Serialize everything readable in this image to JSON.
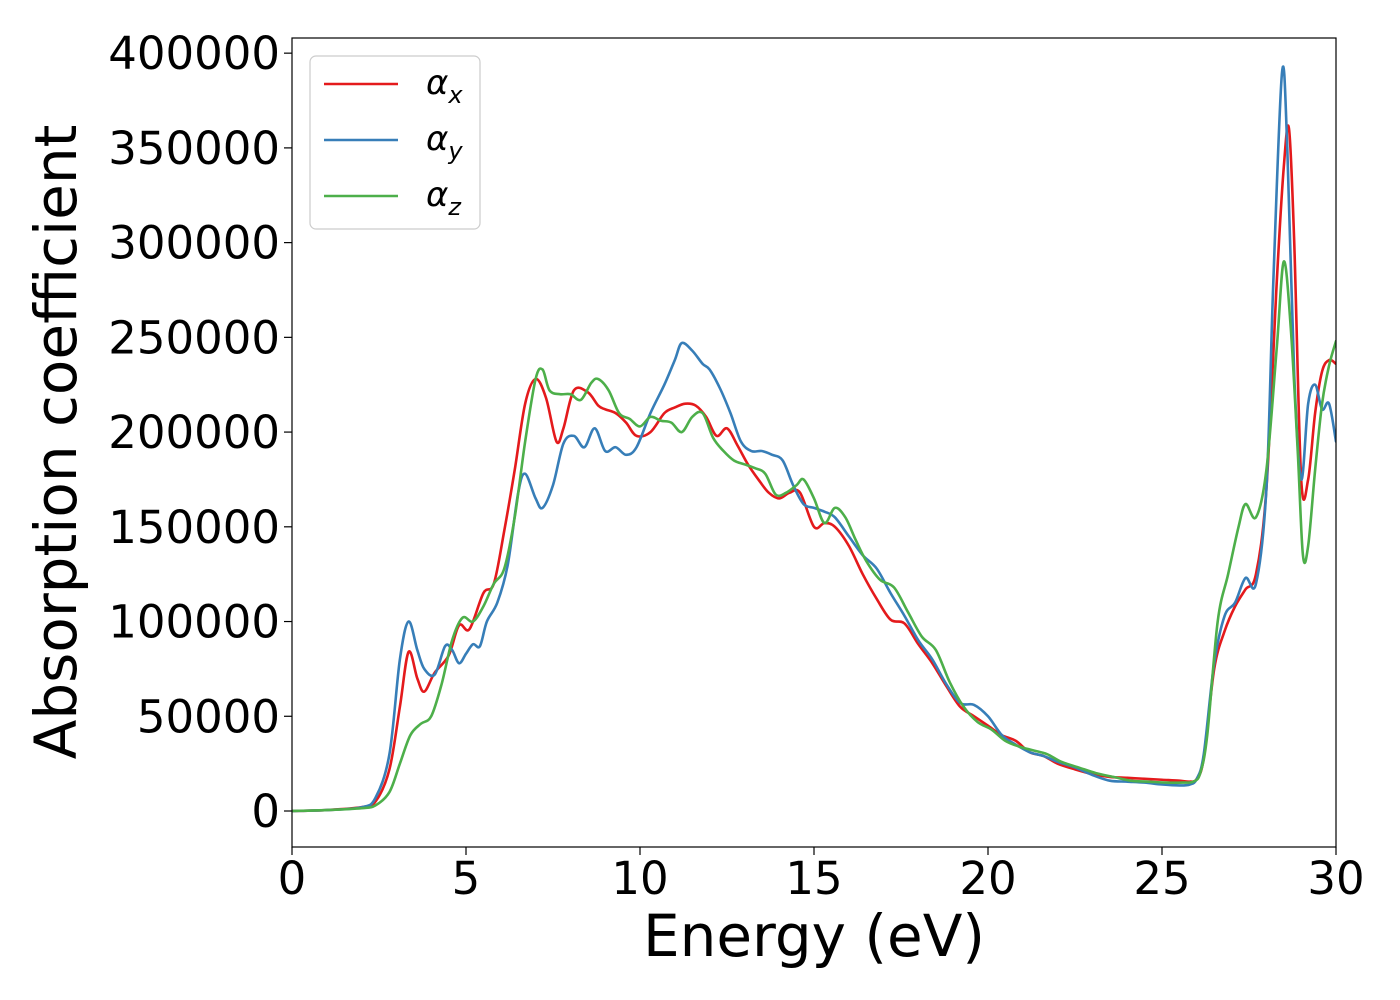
{
  "chart_data": {
    "type": "line",
    "xlabel": "Energy (eV)",
    "ylabel": "Absorption coefficient",
    "xlim": [
      0,
      30
    ],
    "ylim": [
      -19000,
      408000
    ],
    "xticks": [
      0,
      5,
      10,
      15,
      20,
      25,
      30
    ],
    "xtick_labels": [
      "0",
      "5",
      "10",
      "15",
      "20",
      "25",
      "30"
    ],
    "yticks": [
      0,
      50000,
      100000,
      150000,
      200000,
      250000,
      300000,
      350000,
      400000
    ],
    "ytick_labels": [
      "0",
      "50000",
      "100000",
      "150000",
      "200000",
      "250000",
      "300000",
      "350000",
      "400000"
    ],
    "grid": false,
    "legend_position": "top-left",
    "series": [
      {
        "name": "αx",
        "symbol": "α",
        "subscript": "x",
        "color": "#e41a1c",
        "x": [
          0,
          1,
          2,
          2.4,
          2.8,
          3.1,
          3.35,
          3.6,
          3.8,
          4.1,
          4.5,
          4.8,
          5.1,
          5.5,
          5.8,
          6.1,
          6.4,
          6.7,
          7.0,
          7.3,
          7.6,
          7.8,
          8.1,
          8.5,
          8.8,
          9.0,
          9.3,
          9.6,
          9.9,
          10.3,
          10.7,
          11.0,
          11.3,
          11.6,
          11.9,
          12.2,
          12.5,
          12.8,
          13.1,
          13.4,
          13.7,
          14.0,
          14.3,
          14.6,
          15.0,
          15.3,
          15.6,
          16.0,
          16.4,
          16.8,
          17.2,
          17.6,
          18.0,
          18.4,
          18.8,
          19.2,
          19.6,
          20.0,
          20.4,
          20.8,
          21.2,
          21.6,
          22.0,
          22.5,
          23.0,
          23.5,
          24.0,
          24.5,
          25.0,
          25.5,
          25.8,
          26.0,
          26.2,
          26.5,
          26.8,
          27.1,
          27.4,
          27.7,
          28.0,
          28.3,
          28.5,
          28.65,
          28.8,
          29.0,
          29.2,
          29.4,
          29.6,
          29.8,
          30.0
        ],
        "y": [
          0,
          500,
          2000,
          5000,
          22000,
          55000,
          84000,
          70000,
          63000,
          73000,
          82000,
          98000,
          96000,
          115000,
          120000,
          148000,
          180000,
          215000,
          228000,
          218000,
          195000,
          202000,
          222000,
          221000,
          214000,
          212000,
          210000,
          205000,
          198000,
          200000,
          210000,
          213000,
          215000,
          214000,
          208000,
          198000,
          202000,
          193000,
          183000,
          175000,
          168000,
          165000,
          168000,
          168000,
          150000,
          152000,
          150000,
          140000,
          125000,
          112000,
          101000,
          99000,
          88000,
          78000,
          66000,
          55000,
          50000,
          45000,
          40000,
          37000,
          31000,
          29000,
          25000,
          22000,
          19500,
          18000,
          17500,
          17000,
          16500,
          16000,
          15500,
          17000,
          28000,
          75000,
          95000,
          108000,
          117000,
          125000,
          170000,
          280000,
          340000,
          360000,
          300000,
          175000,
          175000,
          210000,
          232000,
          238000,
          236000
        ]
      },
      {
        "name": "αy",
        "symbol": "α",
        "subscript": "y",
        "color": "#377eb8",
        "x": [
          0,
          1,
          2,
          2.4,
          2.8,
          3.1,
          3.35,
          3.6,
          3.8,
          4.1,
          4.4,
          4.6,
          4.8,
          5.0,
          5.2,
          5.4,
          5.6,
          5.9,
          6.2,
          6.5,
          6.7,
          7.0,
          7.2,
          7.5,
          7.8,
          8.1,
          8.4,
          8.7,
          9.0,
          9.3,
          9.6,
          9.9,
          10.3,
          10.7,
          11.0,
          11.2,
          11.5,
          11.8,
          12.0,
          12.3,
          12.6,
          12.9,
          13.2,
          13.5,
          13.8,
          14.1,
          14.4,
          14.7,
          15.0,
          15.3,
          15.6,
          16.0,
          16.4,
          16.8,
          17.2,
          17.6,
          18.0,
          18.4,
          18.8,
          19.2,
          19.6,
          20.0,
          20.4,
          20.8,
          21.2,
          21.6,
          22.0,
          22.5,
          23.0,
          23.5,
          24.0,
          24.5,
          25.0,
          25.5,
          25.8,
          26.0,
          26.2,
          26.5,
          26.8,
          27.1,
          27.4,
          27.7,
          28.0,
          28.2,
          28.45,
          28.6,
          28.8,
          29.0,
          29.2,
          29.4,
          29.6,
          29.8,
          30.0
        ],
        "y": [
          0,
          500,
          2000,
          7000,
          30000,
          80000,
          100000,
          85000,
          75000,
          72000,
          87000,
          85000,
          78000,
          83000,
          88000,
          87000,
          100000,
          110000,
          130000,
          168000,
          178000,
          165000,
          160000,
          172000,
          194000,
          198000,
          192000,
          202000,
          190000,
          192000,
          188000,
          192000,
          210000,
          225000,
          238000,
          247000,
          243000,
          236000,
          233000,
          223000,
          210000,
          195000,
          190000,
          190000,
          188000,
          185000,
          172000,
          162000,
          160000,
          158000,
          155000,
          145000,
          135000,
          128000,
          115000,
          103000,
          90000,
          80000,
          67000,
          57000,
          56000,
          50000,
          40000,
          35000,
          31000,
          29000,
          26000,
          23000,
          19000,
          16000,
          15500,
          15000,
          14000,
          13500,
          14000,
          17000,
          30000,
          78000,
          103000,
          110000,
          123000,
          120000,
          170000,
          280000,
          390000,
          350000,
          230000,
          175000,
          215000,
          225000,
          212000,
          215000,
          195000
        ]
      },
      {
        "name": "αz",
        "symbol": "α",
        "subscript": "z",
        "color": "#4daf4a",
        "x": [
          0,
          1,
          2,
          2.4,
          2.8,
          3.1,
          3.4,
          3.7,
          4.0,
          4.3,
          4.6,
          4.9,
          5.2,
          5.5,
          5.8,
          6.1,
          6.4,
          6.7,
          7.0,
          7.2,
          7.4,
          7.7,
          8.0,
          8.3,
          8.6,
          8.8,
          9.1,
          9.4,
          9.7,
          10.0,
          10.3,
          10.6,
          10.9,
          11.2,
          11.5,
          11.8,
          12.1,
          12.4,
          12.7,
          13.0,
          13.3,
          13.6,
          13.9,
          14.2,
          14.5,
          14.7,
          15.0,
          15.3,
          15.6,
          15.9,
          16.2,
          16.5,
          16.9,
          17.3,
          17.7,
          18.1,
          18.5,
          18.9,
          19.3,
          19.7,
          20.1,
          20.5,
          20.9,
          21.3,
          21.7,
          22.1,
          22.6,
          23.1,
          23.6,
          24.1,
          24.6,
          25.1,
          25.6,
          25.9,
          26.1,
          26.3,
          26.6,
          26.9,
          27.2,
          27.4,
          27.7,
          28.0,
          28.3,
          28.5,
          28.7,
          28.9,
          29.05,
          29.2,
          29.4,
          29.6,
          29.8,
          30.0
        ],
        "y": [
          0,
          500,
          1500,
          3000,
          10000,
          25000,
          40000,
          46000,
          50000,
          67000,
          90000,
          102000,
          100000,
          108000,
          120000,
          128000,
          155000,
          195000,
          228000,
          233000,
          222000,
          220000,
          220000,
          217000,
          226000,
          228000,
          222000,
          210000,
          207000,
          203000,
          208000,
          206000,
          205000,
          200000,
          208000,
          210000,
          197000,
          190000,
          185000,
          183000,
          181000,
          178000,
          167000,
          168000,
          172000,
          175000,
          165000,
          152000,
          160000,
          155000,
          143000,
          132000,
          122000,
          118000,
          105000,
          92000,
          85000,
          68000,
          55000,
          47000,
          43000,
          37000,
          34000,
          32000,
          30000,
          26000,
          23000,
          20000,
          18000,
          16000,
          15500,
          15000,
          15000,
          15500,
          20000,
          40000,
          100000,
          125000,
          150000,
          162000,
          155000,
          180000,
          245000,
          290000,
          255000,
          190000,
          135000,
          140000,
          180000,
          215000,
          235000,
          248000
        ]
      }
    ]
  }
}
